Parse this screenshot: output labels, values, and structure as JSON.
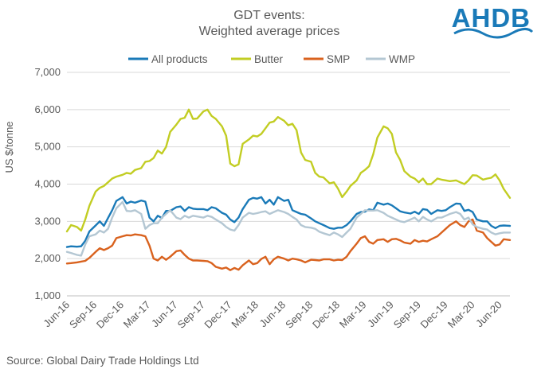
{
  "logo_text": "AHDB",
  "source": "Source: Global Dairy Trade Holdings Ltd",
  "chart_data": {
    "type": "line",
    "title": [
      "GDT events:",
      "Weighted average prices"
    ],
    "ylabel": "US $/tonne",
    "xlabel": "",
    "ylim": [
      1000,
      7000
    ],
    "yticks": [
      1000,
      2000,
      3000,
      4000,
      5000,
      6000,
      7000
    ],
    "ytick_labels": [
      "1,000",
      "2,000",
      "3,000",
      "4,000",
      "5,000",
      "6,000",
      "7,000"
    ],
    "grid": "horizontal",
    "legend_position": "top",
    "x_range": [
      "2016-06-01",
      "2020-07-07"
    ],
    "x_tick_dates": [
      "2016-06-01",
      "2016-09-01",
      "2016-12-01",
      "2017-03-01",
      "2017-06-01",
      "2017-09-01",
      "2017-12-01",
      "2018-03-01",
      "2018-06-01",
      "2018-09-01",
      "2018-12-01",
      "2019-03-01",
      "2019-06-01",
      "2019-09-01",
      "2019-12-01",
      "2020-03-01",
      "2020-06-01"
    ],
    "x_tick_labels": [
      "Jun-16",
      "Sep-16",
      "Dec-16",
      "Mar-17",
      "Jun-17",
      "Sep-17",
      "Dec-17",
      "Mar-18",
      "Jun-18",
      "Sep-18",
      "Dec-18",
      "Mar-19",
      "Jun-19",
      "Sep-19",
      "Dec-19",
      "Mar-20",
      "Jun-20"
    ],
    "x": [
      "2016-06-01",
      "2016-06-15",
      "2016-07-05",
      "2016-07-19",
      "2016-08-02",
      "2016-08-16",
      "2016-09-06",
      "2016-09-20",
      "2016-10-04",
      "2016-10-18",
      "2016-11-01",
      "2016-11-15",
      "2016-12-06",
      "2016-12-20",
      "2017-01-03",
      "2017-01-17",
      "2017-02-07",
      "2017-02-21",
      "2017-03-07",
      "2017-03-21",
      "2017-04-04",
      "2017-04-18",
      "2017-05-02",
      "2017-05-16",
      "2017-06-06",
      "2017-06-20",
      "2017-07-04",
      "2017-07-18",
      "2017-08-01",
      "2017-08-15",
      "2017-09-05",
      "2017-09-19",
      "2017-10-03",
      "2017-10-17",
      "2017-11-07",
      "2017-11-21",
      "2017-12-05",
      "2017-12-19",
      "2018-01-02",
      "2018-01-16",
      "2018-02-06",
      "2018-02-20",
      "2018-03-06",
      "2018-03-20",
      "2018-04-03",
      "2018-04-17",
      "2018-05-01",
      "2018-05-15",
      "2018-06-05",
      "2018-06-19",
      "2018-07-03",
      "2018-07-17",
      "2018-08-01",
      "2018-08-15",
      "2018-09-04",
      "2018-09-18",
      "2018-10-02",
      "2018-10-16",
      "2018-11-06",
      "2018-11-20",
      "2018-12-04",
      "2018-12-18",
      "2019-01-02",
      "2019-01-15",
      "2019-02-05",
      "2019-02-19",
      "2019-03-05",
      "2019-03-19",
      "2019-04-02",
      "2019-04-16",
      "2019-05-07",
      "2019-05-21",
      "2019-06-04",
      "2019-06-18",
      "2019-07-02",
      "2019-07-16",
      "2019-08-06",
      "2019-08-20",
      "2019-09-03",
      "2019-09-17",
      "2019-10-01",
      "2019-10-15",
      "2019-11-05",
      "2019-11-19",
      "2019-12-03",
      "2019-12-17",
      "2020-01-07",
      "2020-01-21",
      "2020-02-04",
      "2020-02-18",
      "2020-03-03",
      "2020-03-17",
      "2020-04-07",
      "2020-04-21",
      "2020-05-05",
      "2020-05-19",
      "2020-06-02",
      "2020-06-16",
      "2020-07-07"
    ],
    "series": [
      {
        "name": "All products",
        "color": "#1a7ab8",
        "values": [
          2310,
          2330,
          2320,
          2330,
          2480,
          2730,
          2890,
          3000,
          2880,
          3090,
          3300,
          3550,
          3650,
          3480,
          3530,
          3500,
          3560,
          3530,
          3100,
          3000,
          3150,
          3090,
          3280,
          3280,
          3380,
          3400,
          3280,
          3380,
          3340,
          3330,
          3330,
          3300,
          3380,
          3350,
          3230,
          3180,
          3050,
          2980,
          3100,
          3330,
          3580,
          3630,
          3610,
          3650,
          3480,
          3580,
          3450,
          3650,
          3550,
          3580,
          3300,
          3250,
          3200,
          3180,
          3080,
          3000,
          2950,
          2900,
          2820,
          2800,
          2830,
          2830,
          2900,
          3000,
          3200,
          3250,
          3260,
          3320,
          3300,
          3500,
          3450,
          3480,
          3430,
          3350,
          3270,
          3240,
          3210,
          3260,
          3200,
          3330,
          3310,
          3200,
          3300,
          3280,
          3300,
          3380,
          3480,
          3470,
          3280,
          3310,
          3250,
          3050,
          3000,
          3000,
          2880,
          2820,
          2880,
          2890,
          2880
        ]
      },
      {
        "name": "Butter",
        "color": "#c2cd23",
        "values": [
          2730,
          2900,
          2850,
          2750,
          3050,
          3420,
          3800,
          3900,
          3950,
          4050,
          4150,
          4200,
          4250,
          4300,
          4280,
          4380,
          4430,
          4600,
          4620,
          4700,
          4900,
          4820,
          5000,
          5400,
          5600,
          5750,
          5780,
          6000,
          5750,
          5760,
          5950,
          6000,
          5830,
          5750,
          5550,
          5300,
          4550,
          4480,
          4530,
          5080,
          5200,
          5300,
          5280,
          5350,
          5500,
          5650,
          5680,
          5800,
          5700,
          5580,
          5620,
          5450,
          4850,
          4650,
          4600,
          4300,
          4200,
          4180,
          4020,
          4050,
          3880,
          3650,
          3800,
          3950,
          4100,
          4300,
          4380,
          4480,
          4800,
          5250,
          5550,
          5500,
          5350,
          4850,
          4650,
          4350,
          4200,
          4150,
          4050,
          4150,
          4000,
          4000,
          4150,
          4120,
          4100,
          4080,
          4100,
          4050,
          4000,
          4100,
          4240,
          4230,
          4120,
          4150,
          4170,
          4260,
          4100,
          3870,
          3630
        ]
      },
      {
        "name": "SMP",
        "color": "#d9621e",
        "values": [
          1870,
          1880,
          1900,
          1920,
          1940,
          2020,
          2180,
          2280,
          2230,
          2280,
          2350,
          2550,
          2600,
          2630,
          2620,
          2650,
          2630,
          2600,
          2350,
          2000,
          1950,
          2050,
          1970,
          2050,
          2200,
          2220,
          2100,
          2000,
          1950,
          1950,
          1940,
          1930,
          1880,
          1780,
          1730,
          1760,
          1690,
          1750,
          1700,
          1820,
          1950,
          1850,
          1880,
          1990,
          2050,
          1850,
          1980,
          2050,
          2000,
          1950,
          2000,
          1980,
          1950,
          1900,
          1970,
          1960,
          1950,
          1980,
          1980,
          1950,
          1970,
          1960,
          2050,
          2200,
          2400,
          2550,
          2600,
          2450,
          2400,
          2500,
          2520,
          2450,
          2520,
          2530,
          2490,
          2430,
          2400,
          2500,
          2450,
          2480,
          2460,
          2520,
          2600,
          2700,
          2800,
          2900,
          3000,
          2900,
          2850,
          3000,
          3050,
          2750,
          2700,
          2550,
          2450,
          2350,
          2380,
          2520,
          2500
        ]
      },
      {
        "name": "WMP",
        "color": "#b4c7d3",
        "values": [
          2180,
          2150,
          2100,
          2080,
          2380,
          2600,
          2650,
          2750,
          2700,
          2800,
          3100,
          3350,
          3520,
          3280,
          3270,
          3300,
          3200,
          2800,
          2900,
          2950,
          2950,
          3100,
          3200,
          3300,
          3100,
          3060,
          3150,
          3100,
          3150,
          3130,
          3100,
          3150,
          3120,
          3050,
          2950,
          2850,
          2780,
          2750,
          2900,
          3100,
          3230,
          3200,
          3220,
          3250,
          3270,
          3200,
          3250,
          3300,
          3250,
          3200,
          3120,
          3050,
          2900,
          2850,
          2830,
          2800,
          2720,
          2680,
          2630,
          2700,
          2650,
          2580,
          2700,
          2800,
          3100,
          3200,
          3300,
          3290,
          3290,
          3300,
          3230,
          3150,
          3100,
          3050,
          3000,
          2980,
          3050,
          3100,
          3000,
          3120,
          3050,
          3000,
          3100,
          3100,
          3150,
          3200,
          3250,
          3200,
          3050,
          3100,
          2920,
          2850,
          2800,
          2780,
          2700,
          2650,
          2680,
          2700,
          2700
        ]
      }
    ]
  }
}
